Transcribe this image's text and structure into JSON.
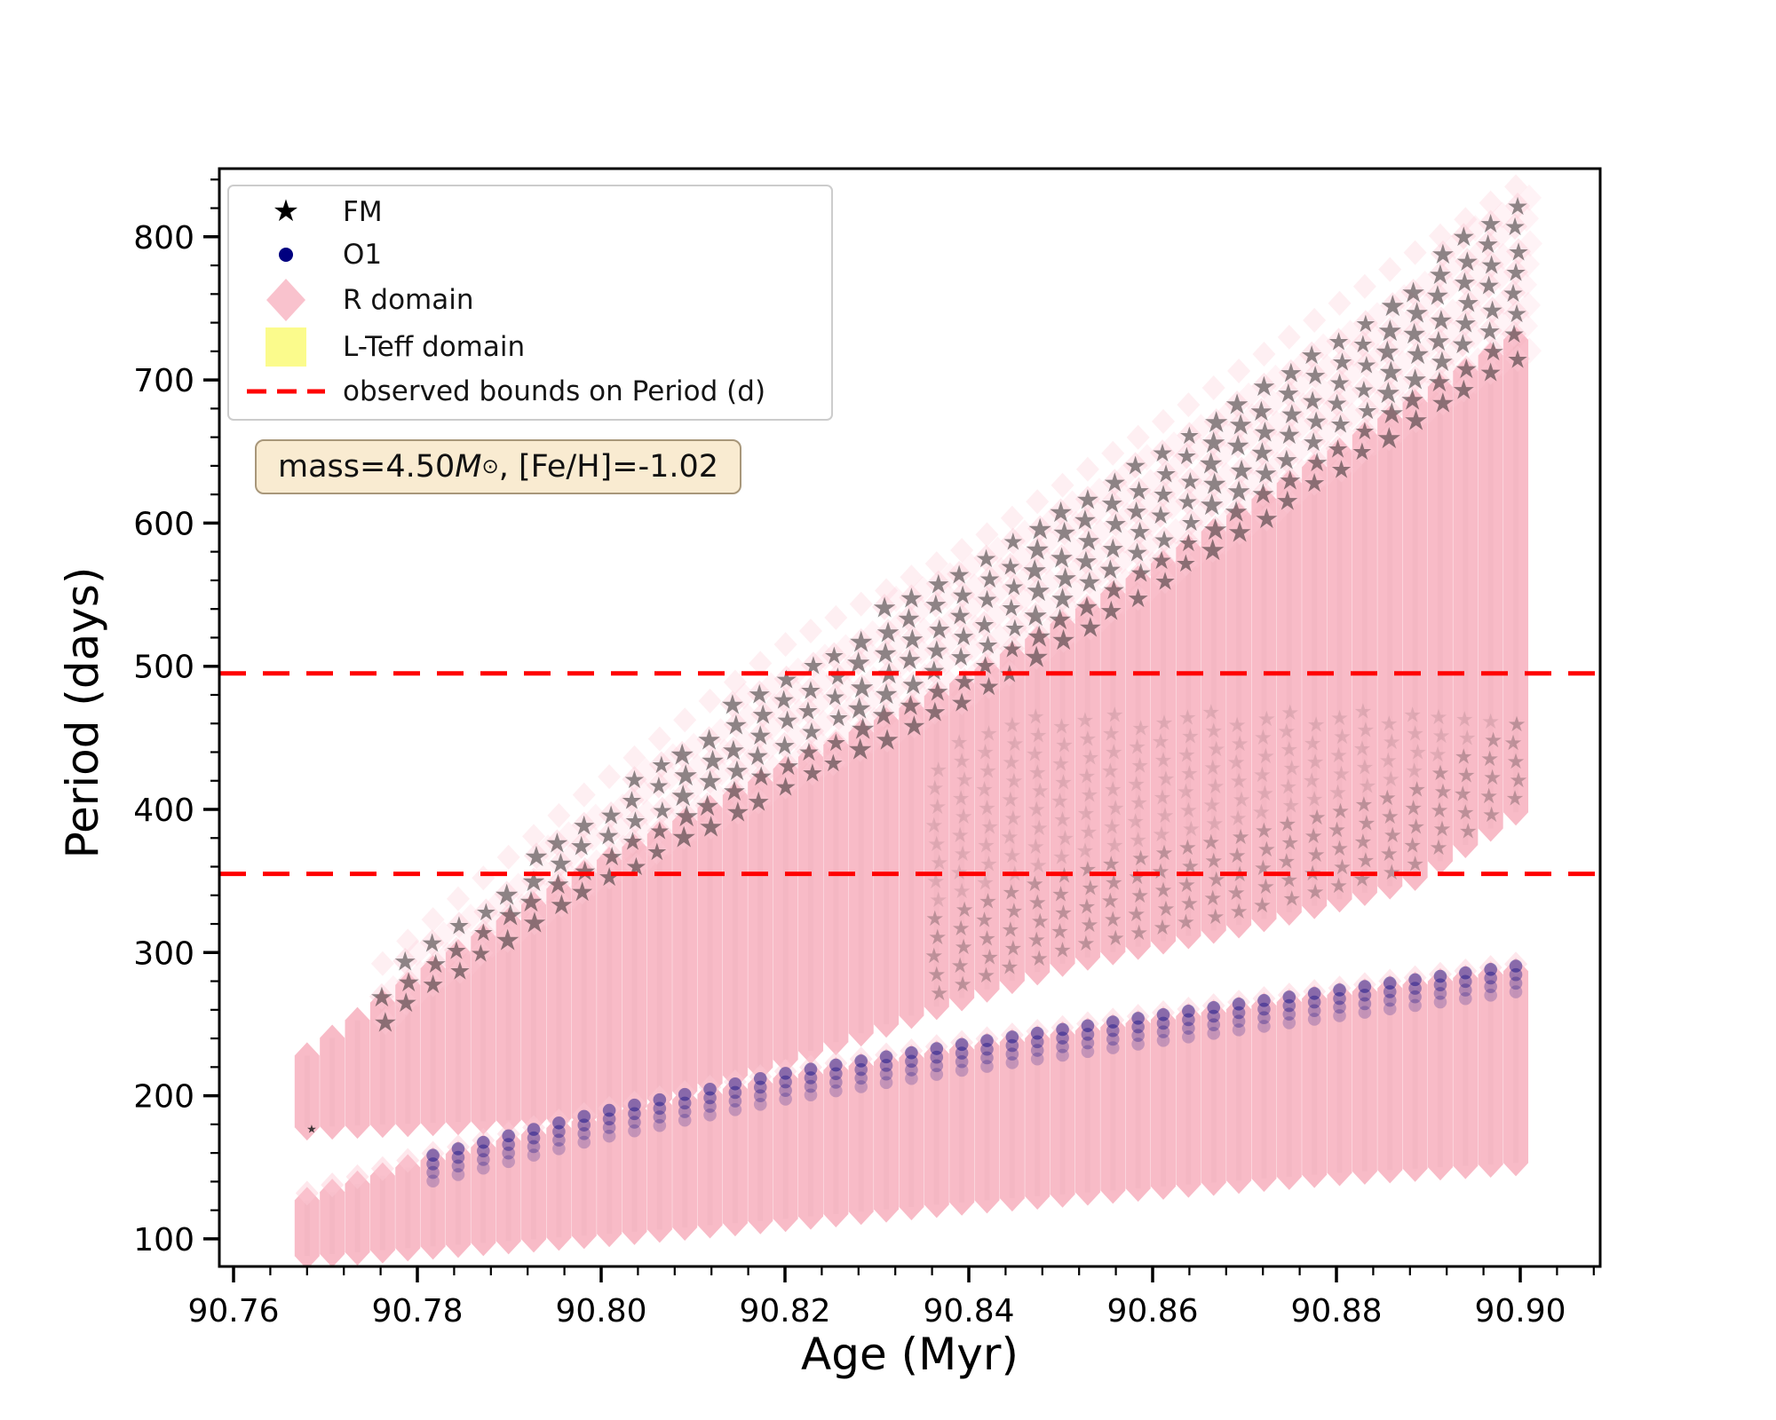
{
  "chart_data": {
    "type": "scatter",
    "title": "",
    "xlabel": "Age (Myr)",
    "ylabel": "Period (days)",
    "xlim": [
      90.758,
      90.909
    ],
    "ylim": [
      80,
      848
    ],
    "grid": false,
    "x_ticks": {
      "values": [
        90.76,
        90.78,
        90.8,
        90.82,
        90.84,
        90.86,
        90.88,
        90.9
      ],
      "labels": [
        "90.76",
        "90.78",
        "90.80",
        "90.82",
        "90.84",
        "90.86",
        "90.88",
        "90.90"
      ],
      "minor_step": 0.004
    },
    "y_ticks": {
      "values": [
        100,
        200,
        300,
        400,
        500,
        600,
        700,
        800
      ],
      "labels": [
        "100",
        "200",
        "300",
        "400",
        "500",
        "600",
        "700",
        "800"
      ],
      "minor_step": 20
    },
    "hlines": {
      "values": [
        495,
        355
      ],
      "color": "#ff0000",
      "linestyle": "dashed",
      "legend_label": "observed bounds on Period (d)"
    },
    "age_grid": {
      "start": 90.768,
      "step": 0.00274,
      "columns": 49
    },
    "r_domain": {
      "marker": "diamond",
      "color": "#FFC0CB",
      "solid_fill": "#f8b9c5",
      "sparse_fill": "#fdc9d4",
      "upper_band": {
        "top": {
          "ages": [
            90.768,
            90.78,
            90.798,
            90.82,
            90.84,
            90.862,
            90.89,
            90.8995
          ],
          "periods": [
            228,
            282,
            355,
            428,
            490,
            575,
            690,
            728
          ]
        },
        "bottom": {
          "ages": [
            90.768,
            90.8,
            90.82,
            90.84,
            90.851,
            90.87,
            90.888,
            90.8995
          ],
          "periods": [
            178,
            185,
            225,
            270,
            294,
            320,
            350,
            398
          ]
        }
      },
      "lower_band": {
        "top": {
          "ages": [
            90.768,
            90.78,
            90.8,
            90.82,
            90.84,
            90.86,
            90.88,
            90.8995
          ],
          "periods": [
            127,
            152,
            185,
            212,
            233,
            252,
            270,
            287
          ]
        },
        "bottom": {
          "ages": [
            90.768,
            90.78,
            90.8,
            90.82,
            90.84,
            90.86,
            90.88,
            90.8995
          ],
          "periods": [
            88,
            94,
            103,
            114,
            126,
            136,
            146,
            153
          ]
        }
      }
    },
    "fm": {
      "marker": "star",
      "color": "#000000",
      "alpha": 0.5,
      "first_age": 90.776,
      "period_step": 15,
      "stripe_below_top": 12,
      "gap_above_top": {
        "ages": [
          90.776,
          90.8,
          90.82,
          90.85,
          90.899
        ],
        "periods": [
          15,
          45,
          75,
          85,
          95
        ]
      },
      "deep_from_age": 90.836,
      "deep_top_cap": 470,
      "deep_step": 13,
      "stray_point": {
        "age": 90.7685,
        "period": 177
      }
    },
    "o1": {
      "marker": "circle",
      "color": "#000080",
      "alpha": 0.4,
      "first_age": 90.779,
      "location": "top edge of lower band",
      "offsets_below_top_days": [
        2,
        8,
        14,
        20
      ]
    },
    "l_teff_domain": {
      "marker": "square",
      "color": "#FFFF99",
      "visible_in_plot": false
    }
  },
  "legend": {
    "items": [
      {
        "label": "FM",
        "marker": "star",
        "color": "#000000"
      },
      {
        "label": "O1",
        "marker": "circle",
        "color": "#000080"
      },
      {
        "label": "R domain",
        "marker": "diamond",
        "color": "#f9c2cd"
      },
      {
        "label": "L-Teff domain",
        "marker": "square",
        "color": "#fbfb8c"
      },
      {
        "label": "observed bounds on Period (d)",
        "marker": "dashed-line",
        "color": "#ff0000"
      }
    ]
  },
  "annotation": {
    "text": "mass=4.50M⊙, [Fe/H]=-1.02",
    "prefix": "mass=4.50",
    "mass_symbol": "M",
    "sun_symbol": "⊙",
    "suffix": ", [Fe/H]=-1.02",
    "background": "#F5DEB3"
  }
}
